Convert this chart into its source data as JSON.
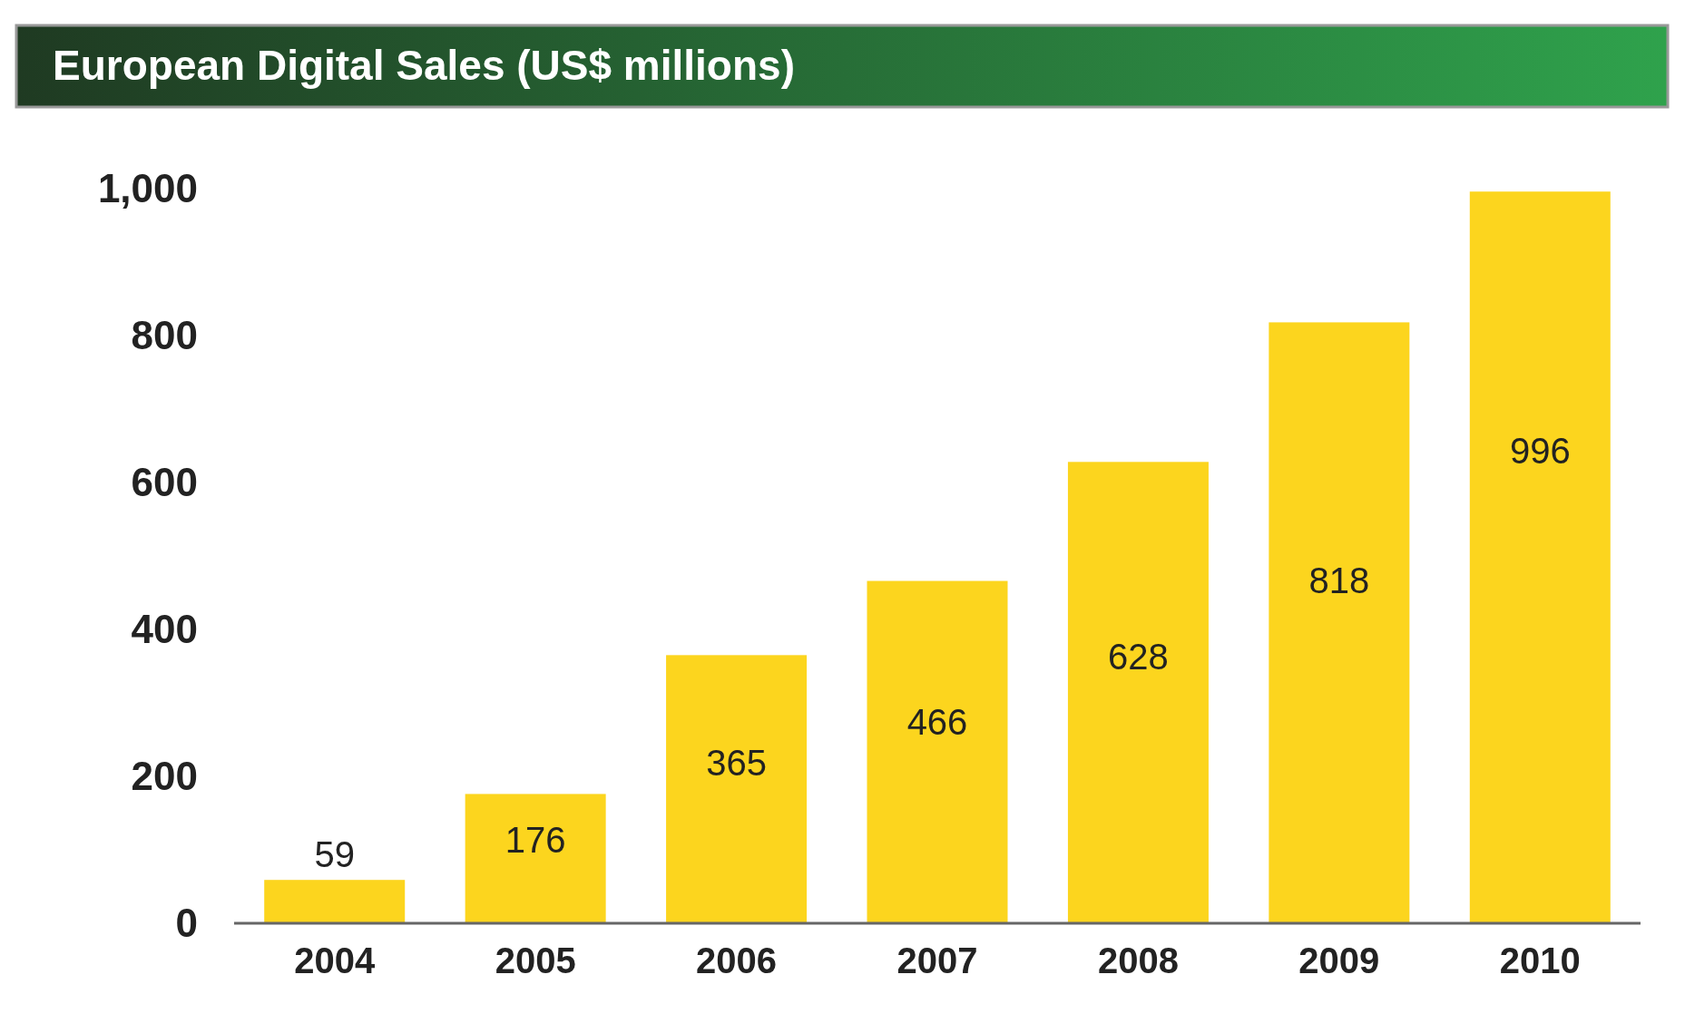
{
  "chart_data": {
    "type": "bar",
    "title": "European Digital Sales (US$ millions)",
    "categories": [
      "2004",
      "2005",
      "2006",
      "2007",
      "2008",
      "2009",
      "2010"
    ],
    "values": [
      59,
      176,
      365,
      466,
      628,
      818,
      996
    ],
    "color": "#fcd51e",
    "ylim": [
      0,
      1000
    ],
    "yticks": [
      0,
      200,
      400,
      600,
      800,
      {
        "value": 1000,
        "label": "1,000"
      }
    ],
    "data_labels": true
  }
}
